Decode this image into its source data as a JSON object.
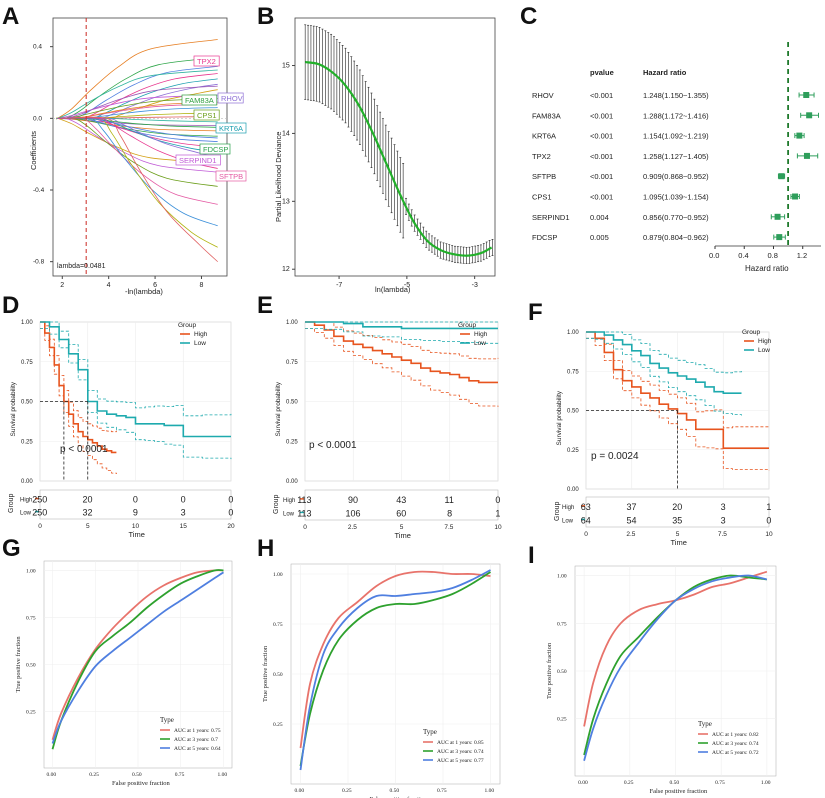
{
  "figure": {
    "panel_letters": [
      "A",
      "B",
      "C",
      "D",
      "E",
      "F",
      "G",
      "H",
      "I"
    ]
  },
  "colors": {
    "km_high": "#e7541e",
    "km_low": "#1eaaae",
    "forest": "#2e9e5b",
    "lambda_line": "#cc2a22",
    "roc_1": "#e8736b",
    "roc_3": "#2ea12e",
    "roc_5": "#4f7fe0",
    "lasso_green": "#2fa64a"
  },
  "chart_data": [
    {
      "id": "A",
      "type": "line",
      "title": "",
      "xlabel": "-ln(lambda)",
      "ylabel": "Coefficients",
      "xticks": [
        "2",
        "4",
        "6",
        "8"
      ],
      "yticks": [
        "0.4",
        "0.0",
        "-0.4",
        "-0.8"
      ],
      "xlim": [
        1.6,
        9.1
      ],
      "ylim": [
        -0.88,
        0.56
      ],
      "lambda_x": 3.03,
      "lambda_label": "lambda=0.0481",
      "gene_labels": [
        {
          "gene": "TPX2",
          "value": 0.44,
          "color": "#e8388f"
        },
        {
          "gene": "FAM83A",
          "value": 0.21,
          "color": "#2e9e3e"
        },
        {
          "gene": "RHOV",
          "value": 0.21,
          "color": "#8e6fd6"
        },
        {
          "gene": "CPS1",
          "value": 0.12,
          "color": "#6b9e1a"
        },
        {
          "gene": "KRT6A",
          "value": 0.03,
          "color": "#1c9fb0"
        },
        {
          "gene": "FDCSP",
          "value": -0.1,
          "color": "#2aa04a"
        },
        {
          "gene": "SERPIND1",
          "value": -0.18,
          "color": "#c05ad6"
        },
        {
          "gene": "SFTPB",
          "value": -0.28,
          "color": "#e45aa3"
        }
      ]
    },
    {
      "id": "B",
      "type": "line",
      "xlabel": "ln(lambda)",
      "ylabel": "Partial Likelihood Deviance",
      "xticks": [
        "-7",
        "-5",
        "-3"
      ],
      "yticks": [
        "15",
        "14",
        "13",
        "12"
      ],
      "xlim": [
        -8.3,
        -2.4
      ],
      "ylim": [
        11.9,
        15.7
      ],
      "x": [
        -8.0,
        -7.6,
        -7.2,
        -6.8,
        -6.4,
        -6.0,
        -5.6,
        -5.2,
        -4.8,
        -4.4,
        -4.0,
        -3.6,
        -3.2,
        -2.8,
        -2.5
      ],
      "y": [
        15.05,
        15.02,
        14.9,
        14.7,
        14.4,
        14.0,
        13.55,
        13.1,
        12.7,
        12.42,
        12.28,
        12.22,
        12.2,
        12.24,
        12.32
      ]
    },
    {
      "id": "C",
      "type": "forest",
      "headers": [
        "pvalue",
        "Hazard ratio"
      ],
      "xlabel": "Hazard ratio",
      "xticks": [
        "0.0",
        "0.4",
        "0.8",
        "1.2"
      ],
      "xlim": [
        0.0,
        1.45
      ],
      "ref": 1.0,
      "rows": [
        {
          "gene": "RHOV",
          "pvalue": "<0.001",
          "hr_text": "1.248(1.150~1.355)",
          "hr": 1.248,
          "lo": 1.15,
          "hi": 1.355
        },
        {
          "gene": "FAM83A",
          "pvalue": "<0.001",
          "hr_text": "1.288(1.172~1.416)",
          "hr": 1.288,
          "lo": 1.172,
          "hi": 1.416
        },
        {
          "gene": "KRT6A",
          "pvalue": "<0.001",
          "hr_text": "1.154(1.092~1.219)",
          "hr": 1.154,
          "lo": 1.092,
          "hi": 1.219
        },
        {
          "gene": "TPX2",
          "pvalue": "<0.001",
          "hr_text": "1.258(1.127~1.405)",
          "hr": 1.258,
          "lo": 1.127,
          "hi": 1.405
        },
        {
          "gene": "SFTPB",
          "pvalue": "<0.001",
          "hr_text": "0.909(0.868~0.952)",
          "hr": 0.909,
          "lo": 0.868,
          "hi": 0.952
        },
        {
          "gene": "CPS1",
          "pvalue": "<0.001",
          "hr_text": "1.095(1.039~1.154)",
          "hr": 1.095,
          "lo": 1.039,
          "hi": 1.154
        },
        {
          "gene": "SERPIND1",
          "pvalue": "0.004",
          "hr_text": "0.856(0.770~0.952)",
          "hr": 0.856,
          "lo": 0.77,
          "hi": 0.952
        },
        {
          "gene": "FDCSP",
          "pvalue": "0.005",
          "hr_text": "0.879(0.804~0.962)",
          "hr": 0.879,
          "lo": 0.804,
          "hi": 0.962
        }
      ]
    },
    {
      "id": "D",
      "type": "line",
      "ylabel": "Survival probability",
      "xlabel": "Time",
      "legend_title": "Group",
      "legend": [
        "High",
        "Low"
      ],
      "pvalue": "p < 0.0001",
      "xticks": [
        "0",
        "5",
        "10",
        "15",
        "20"
      ],
      "xlim": [
        0,
        20
      ],
      "yticks": [
        "1.00",
        "0.75",
        "0.50",
        "0.25",
        "0.00"
      ],
      "median_high": 2.5,
      "median_low": 5.0,
      "high": {
        "x": [
          0,
          0.5,
          1,
          1.5,
          2,
          2.5,
          3,
          3.5,
          4,
          4.5,
          5,
          5.5,
          6,
          6.5,
          7,
          7.5,
          8
        ],
        "y": [
          1.0,
          0.93,
          0.84,
          0.73,
          0.6,
          0.5,
          0.42,
          0.36,
          0.31,
          0.28,
          0.26,
          0.24,
          0.22,
          0.2,
          0.19,
          0.18,
          0.18
        ]
      },
      "low": {
        "x": [
          0,
          1,
          2,
          3,
          4,
          5,
          6,
          7,
          8,
          9,
          10,
          11,
          12,
          13,
          14,
          15,
          17,
          20
        ],
        "y": [
          1.0,
          0.97,
          0.89,
          0.8,
          0.7,
          0.5,
          0.44,
          0.42,
          0.41,
          0.4,
          0.36,
          0.36,
          0.36,
          0.35,
          0.35,
          0.28,
          0.28,
          0.28
        ]
      },
      "risk_table": {
        "label": "Group",
        "rows": [
          "High",
          "Low"
        ],
        "high": [
          "250",
          "20",
          "0",
          "0",
          "0"
        ],
        "low": [
          "250",
          "32",
          "9",
          "3",
          "0"
        ]
      }
    },
    {
      "id": "E",
      "type": "line",
      "ylabel": "Survival probability",
      "xlabel": "Time",
      "legend_title": "Group",
      "legend": [
        "High",
        "Low"
      ],
      "pvalue": "p < 0.0001",
      "xticks": [
        "0",
        "2.5",
        "5",
        "7.5",
        "10"
      ],
      "xlim": [
        0,
        10
      ],
      "yticks": [
        "1.00",
        "0.75",
        "0.50",
        "0.25",
        "0.00"
      ],
      "high": {
        "x": [
          0,
          0.5,
          1,
          1.5,
          2,
          2.5,
          3,
          3.5,
          4,
          4.5,
          5,
          5.5,
          6,
          6.5,
          7,
          7.5,
          8,
          8.5,
          9,
          10
        ],
        "y": [
          1.0,
          0.98,
          0.95,
          0.91,
          0.88,
          0.86,
          0.84,
          0.82,
          0.8,
          0.78,
          0.76,
          0.74,
          0.71,
          0.69,
          0.68,
          0.67,
          0.65,
          0.63,
          0.62,
          0.62
        ]
      },
      "low": {
        "x": [
          0,
          1,
          2,
          3,
          4,
          5,
          6,
          7,
          8,
          9,
          10
        ],
        "y": [
          1.0,
          1.0,
          0.99,
          0.97,
          0.97,
          0.96,
          0.96,
          0.96,
          0.96,
          0.96,
          0.96
        ]
      },
      "risk_table": {
        "label": "Group",
        "rows": [
          "High",
          "Low"
        ],
        "high": [
          "113",
          "90",
          "43",
          "11",
          "0"
        ],
        "low": [
          "113",
          "106",
          "60",
          "8",
          "1"
        ]
      }
    },
    {
      "id": "F",
      "type": "line",
      "ylabel": "Survival probability",
      "xlabel": "Time",
      "legend_title": "Group",
      "legend": [
        "High",
        "Low"
      ],
      "pvalue": "p = 0.0024",
      "xticks": [
        "0",
        "2.5",
        "5",
        "7.5",
        "10"
      ],
      "xlim": [
        0,
        10
      ],
      "yticks": [
        "1.00",
        "0.75",
        "0.50",
        "0.25",
        "0.00"
      ],
      "median_high": 5.0,
      "high": {
        "x": [
          0,
          0.5,
          1,
          1.5,
          2,
          2.5,
          3,
          3.5,
          4,
          4.5,
          5,
          5.5,
          6,
          6.5,
          7,
          7.5,
          8,
          10
        ],
        "y": [
          1.0,
          0.96,
          0.87,
          0.76,
          0.69,
          0.65,
          0.61,
          0.58,
          0.54,
          0.51,
          0.48,
          0.44,
          0.38,
          0.38,
          0.38,
          0.26,
          0.26,
          0.26
        ]
      },
      "low": {
        "x": [
          0,
          0.5,
          1,
          1.5,
          2,
          2.5,
          3,
          3.5,
          4,
          4.5,
          5,
          5.5,
          6,
          6.5,
          7,
          7.5,
          8,
          8.5
        ],
        "y": [
          1.0,
          1.0,
          0.98,
          0.95,
          0.92,
          0.88,
          0.85,
          0.8,
          0.77,
          0.74,
          0.72,
          0.7,
          0.68,
          0.65,
          0.62,
          0.61,
          0.61,
          0.61
        ]
      },
      "risk_table": {
        "label": "Group",
        "rows": [
          "High",
          "Low"
        ],
        "high": [
          "63",
          "37",
          "20",
          "3",
          "1"
        ],
        "low": [
          "64",
          "54",
          "35",
          "3",
          "0"
        ]
      }
    },
    {
      "id": "G",
      "type": "line",
      "xlabel": "False positive fraction",
      "ylabel": "True positive fraction",
      "xticks": [
        "0.00",
        "0.25",
        "0.50",
        "0.75",
        "1.00"
      ],
      "yticks": [
        "1.00",
        "0.75",
        "0.50",
        "0.25"
      ],
      "legend_title": "Type",
      "legend": [
        "AUC at 1 years: 0.75",
        "AUC at 3 years: 0.7",
        "AUC at 5 years: 0.64"
      ],
      "series": [
        {
          "name": "AUC at 1 years: 0.75",
          "x": [
            0,
            0.05,
            0.15,
            0.25,
            0.35,
            0.45,
            0.55,
            0.65,
            0.75,
            0.85,
            0.95,
            1
          ],
          "y": [
            0.1,
            0.24,
            0.43,
            0.58,
            0.69,
            0.78,
            0.86,
            0.92,
            0.96,
            0.99,
            1.0,
            1.0
          ]
        },
        {
          "name": "AUC at 3 years: 0.7",
          "x": [
            0,
            0.05,
            0.15,
            0.25,
            0.35,
            0.45,
            0.55,
            0.65,
            0.75,
            0.85,
            0.95,
            1
          ],
          "y": [
            0.05,
            0.2,
            0.41,
            0.57,
            0.65,
            0.72,
            0.8,
            0.87,
            0.93,
            0.97,
            1.0,
            1.0
          ]
        },
        {
          "name": "AUC at 5 years: 0.64",
          "x": [
            0,
            0.05,
            0.15,
            0.25,
            0.35,
            0.45,
            0.55,
            0.65,
            0.75,
            0.85,
            0.95,
            1
          ],
          "y": [
            0.08,
            0.2,
            0.36,
            0.49,
            0.57,
            0.64,
            0.71,
            0.78,
            0.84,
            0.9,
            0.96,
            0.99
          ]
        }
      ]
    },
    {
      "id": "H",
      "type": "line",
      "xlabel": "False positive fraction",
      "ylabel": "True positive fraction",
      "xticks": [
        "0.00",
        "0.25",
        "0.50",
        "0.75",
        "1.00"
      ],
      "yticks": [
        "1.00",
        "0.75",
        "0.50",
        "0.25"
      ],
      "legend_title": "Type",
      "legend": [
        "AUC at 1 years: 0.85",
        "AUC at 3 years: 0.74",
        "AUC at 5 years: 0.77"
      ],
      "series": [
        {
          "name": "AUC at 1 years: 0.85",
          "x": [
            0,
            0.05,
            0.12,
            0.2,
            0.3,
            0.4,
            0.5,
            0.6,
            0.7,
            0.8,
            0.9,
            1
          ],
          "y": [
            0.13,
            0.45,
            0.65,
            0.78,
            0.86,
            0.94,
            0.99,
            1.01,
            1.01,
            1.0,
            1.0,
            0.99
          ]
        },
        {
          "name": "AUC at 3 years: 0.74",
          "x": [
            0,
            0.05,
            0.12,
            0.2,
            0.3,
            0.4,
            0.5,
            0.6,
            0.7,
            0.8,
            0.9,
            1
          ],
          "y": [
            0.04,
            0.3,
            0.52,
            0.67,
            0.77,
            0.83,
            0.85,
            0.85,
            0.87,
            0.9,
            0.95,
            1.01
          ]
        },
        {
          "name": "AUC at 5 years: 0.77",
          "x": [
            0,
            0.05,
            0.12,
            0.2,
            0.3,
            0.4,
            0.5,
            0.6,
            0.7,
            0.8,
            0.9,
            1
          ],
          "y": [
            0.02,
            0.34,
            0.6,
            0.73,
            0.83,
            0.89,
            0.89,
            0.9,
            0.91,
            0.93,
            0.97,
            1.02
          ]
        }
      ]
    },
    {
      "id": "I",
      "type": "line",
      "xlabel": "False positive fraction",
      "ylabel": "True positive fraction",
      "xticks": [
        "0.00",
        "0.25",
        "0.50",
        "0.75",
        "1.00"
      ],
      "yticks": [
        "1.00",
        "0.75",
        "0.50",
        "0.25"
      ],
      "legend_title": "Type",
      "legend": [
        "AUC at 1 years: 0.82",
        "AUC at 3 years: 0.74",
        "AUC at 5 years: 0.72"
      ],
      "series": [
        {
          "name": "AUC at 1 years: 0.82",
          "x": [
            0,
            0.05,
            0.12,
            0.2,
            0.3,
            0.4,
            0.5,
            0.6,
            0.7,
            0.8,
            0.9,
            1
          ],
          "y": [
            0.21,
            0.44,
            0.63,
            0.75,
            0.82,
            0.85,
            0.87,
            0.9,
            0.94,
            0.96,
            0.99,
            1.02
          ]
        },
        {
          "name": "AUC at 3 years: 0.74",
          "x": [
            0,
            0.05,
            0.12,
            0.2,
            0.3,
            0.4,
            0.5,
            0.6,
            0.7,
            0.8,
            0.9,
            1
          ],
          "y": [
            0.06,
            0.25,
            0.43,
            0.58,
            0.68,
            0.78,
            0.87,
            0.94,
            0.98,
            1.0,
            0.99,
            0.98
          ]
        },
        {
          "name": "AUC at 5 years: 0.72",
          "x": [
            0,
            0.05,
            0.12,
            0.2,
            0.3,
            0.4,
            0.5,
            0.6,
            0.7,
            0.8,
            0.9,
            1
          ],
          "y": [
            0.03,
            0.2,
            0.37,
            0.52,
            0.65,
            0.77,
            0.87,
            0.93,
            0.97,
            0.99,
            1.0,
            0.98
          ]
        }
      ]
    }
  ]
}
